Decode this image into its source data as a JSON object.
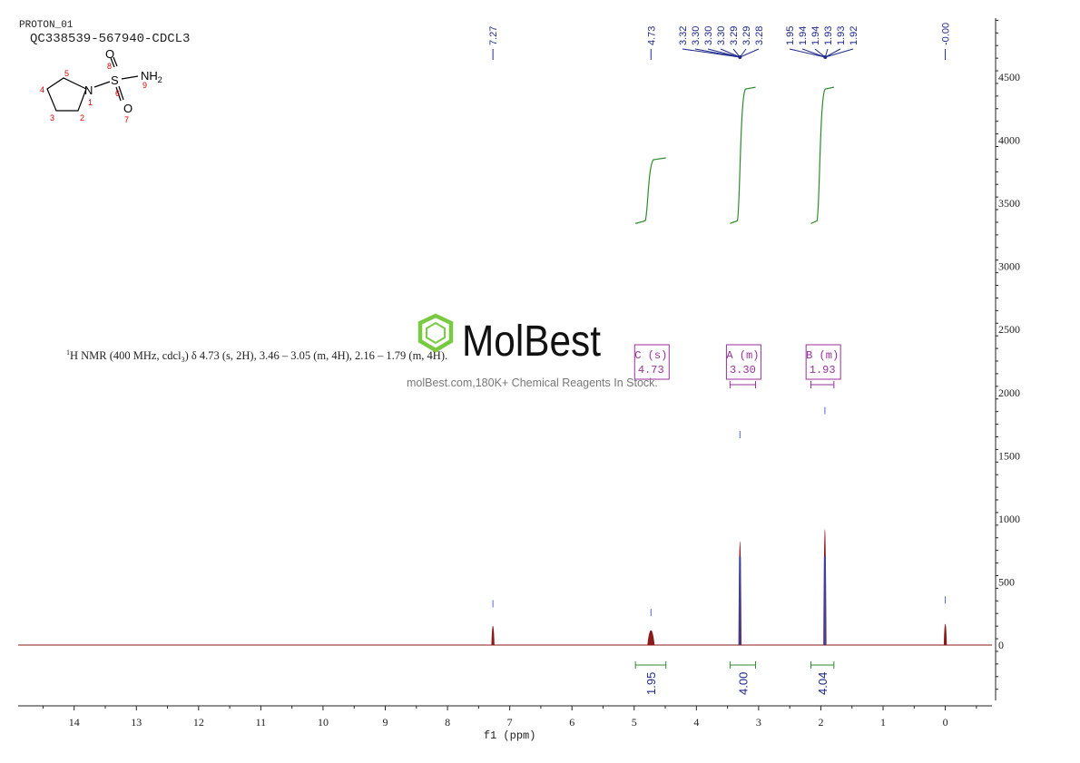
{
  "header": {
    "experiment": "PROTON_01",
    "sample": "QC338539-567940-CDCL3"
  },
  "structure": {
    "atoms": [
      {
        "label": "N",
        "number": "1"
      },
      {
        "label": "",
        "number": "2"
      },
      {
        "label": "",
        "number": "3"
      },
      {
        "label": "",
        "number": "4"
      },
      {
        "label": "",
        "number": "5"
      },
      {
        "label": "S",
        "number": "6"
      },
      {
        "label": "O",
        "number": "7"
      },
      {
        "label": "O",
        "number": "8"
      },
      {
        "label": "NH",
        "sub": "2",
        "number": "9"
      }
    ]
  },
  "report": {
    "sup": "1",
    "text": "H NMR (400 MHz, cdcl",
    "sub": "3",
    "rest": ") δ 4.73 (s, 2H), 3.46 – 3.05 (m, 4H), 2.16 – 1.79 (m, 4H)."
  },
  "watermark": {
    "brand": "MolBest",
    "tagline": "molBest.com,180K+ Chemical Reagents In Stock."
  },
  "colors": {
    "spectrum": "#8b1a1a",
    "peak_label": "#1f2a8a",
    "integral": "#2e8b2e",
    "multiplet_box": "#9b2f9b",
    "axis": "#222222",
    "logo": "#7ac943"
  },
  "chart_data": {
    "type": "line",
    "xlabel": "f1 (ppm)",
    "ylabel": "",
    "xlim": [
      14.9,
      -0.75
    ],
    "x_reversed": true,
    "ylim": [
      -500,
      5000
    ],
    "x_ticks": [
      14,
      13,
      12,
      11,
      10,
      9,
      8,
      7,
      6,
      5,
      4,
      3,
      2,
      1,
      0
    ],
    "y_ticks": [
      0,
      500,
      1000,
      1500,
      2000,
      2500,
      3000,
      3500,
      4000,
      4500
    ],
    "series": [
      {
        "peaks": [
          {
            "ppm": 7.27,
            "height": 270,
            "label": "7.27"
          },
          {
            "ppm": 4.73,
            "height": 200,
            "label": "4.73"
          },
          {
            "ppm": 3.3,
            "height": 1610,
            "label": "3.30"
          },
          {
            "ppm": 1.935,
            "height": 1800,
            "label": "1.93"
          },
          {
            "ppm": 0.0,
            "height": 300,
            "label": "0.00"
          }
        ]
      }
    ],
    "peak_labels_single": [
      {
        "ppm": 7.27,
        "label": "7.27"
      },
      {
        "ppm": 4.73,
        "label": "4.73"
      },
      {
        "ppm": 0.0,
        "label": "-0.00"
      }
    ],
    "peak_label_groups": [
      {
        "center": 3.3,
        "labels": [
          "3.32",
          "3.30",
          "3.30",
          "3.30",
          "3.29",
          "3.29",
          "3.28"
        ]
      },
      {
        "center": 1.93,
        "labels": [
          "1.95",
          "1.94",
          "1.94",
          "1.93",
          "1.93",
          "1.92"
        ]
      }
    ],
    "integrals": [
      {
        "from": 4.98,
        "to": 4.49,
        "value": "1.95",
        "curve_low": 3340,
        "curve_high": 3860
      },
      {
        "from": 3.46,
        "to": 3.05,
        "value": "4.00",
        "curve_low": 3340,
        "curve_high": 4420
      },
      {
        "from": 2.16,
        "to": 1.79,
        "value": "4.04",
        "curve_low": 3340,
        "curve_high": 4420
      }
    ],
    "multiplets": [
      {
        "id": "C",
        "type": "s",
        "shift": "4.73",
        "title": "C (s)",
        "from": 4.73,
        "to": 4.73
      },
      {
        "id": "A",
        "type": "m",
        "shift": "3.30",
        "title": "A (m)",
        "from": 3.46,
        "to": 3.05
      },
      {
        "id": "B",
        "type": "m",
        "shift": "1.93",
        "title": "B (m)",
        "from": 2.16,
        "to": 1.79
      }
    ]
  }
}
